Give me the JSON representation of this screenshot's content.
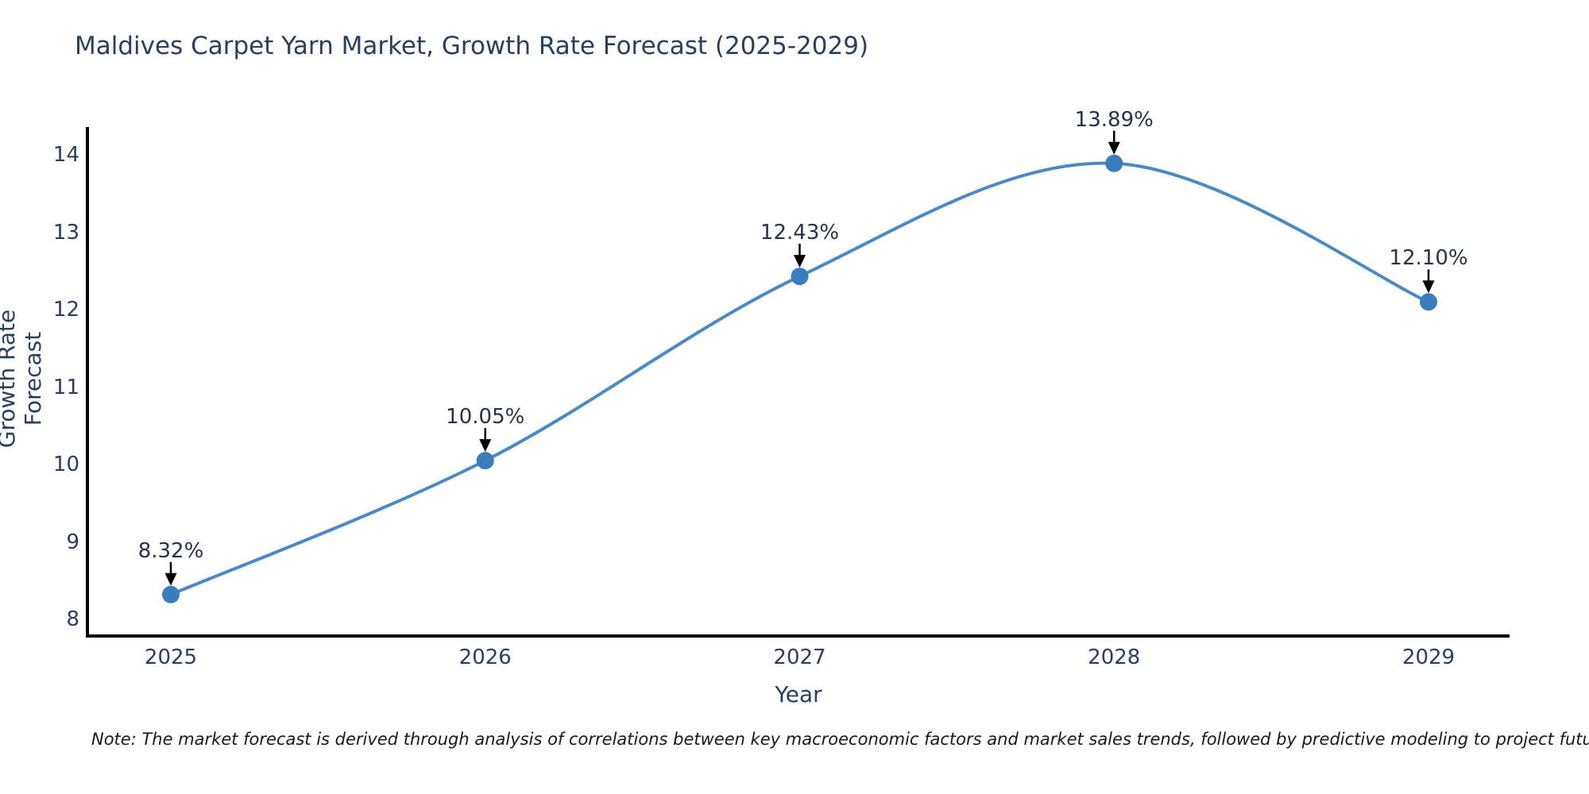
{
  "title": "Maldives Carpet Yarn Market, Growth Rate Forecast (2025-2029)",
  "note": "Note: The market forecast is derived through analysis of correlations between key macroeconomic factors and market sales trends, followed by predictive modeling to project future sales",
  "chart_data": {
    "type": "line",
    "line_shape": "spline",
    "title": "Maldives Carpet Yarn Market, Growth Rate Forecast (2025-2029)",
    "xlabel": "Year",
    "ylabel": "Growth Rate Forecast",
    "categories": [
      "2025",
      "2026",
      "2027",
      "2028",
      "2029"
    ],
    "series": [
      {
        "name": "Growth Rate Forecast",
        "values": [
          8.32,
          10.05,
          12.43,
          13.89,
          12.1
        ]
      }
    ],
    "point_labels": [
      "8.32%",
      "10.05%",
      "12.43%",
      "13.89%",
      "12.10%"
    ],
    "yticks": [
      8,
      9,
      10,
      11,
      12,
      13,
      14
    ],
    "ylim": [
      7.8,
      14.4
    ],
    "grid": false,
    "legend": "none",
    "markers": true,
    "annotations_have_arrows": true,
    "colors": {
      "line": "#4a8ac4",
      "marker": "#3a7dbf",
      "arrow": "#000000",
      "axis": "#000000",
      "text": "#2a3f5f",
      "annotation_text": "#243447",
      "note_text": "#16191f",
      "background": "#ffffff"
    }
  }
}
